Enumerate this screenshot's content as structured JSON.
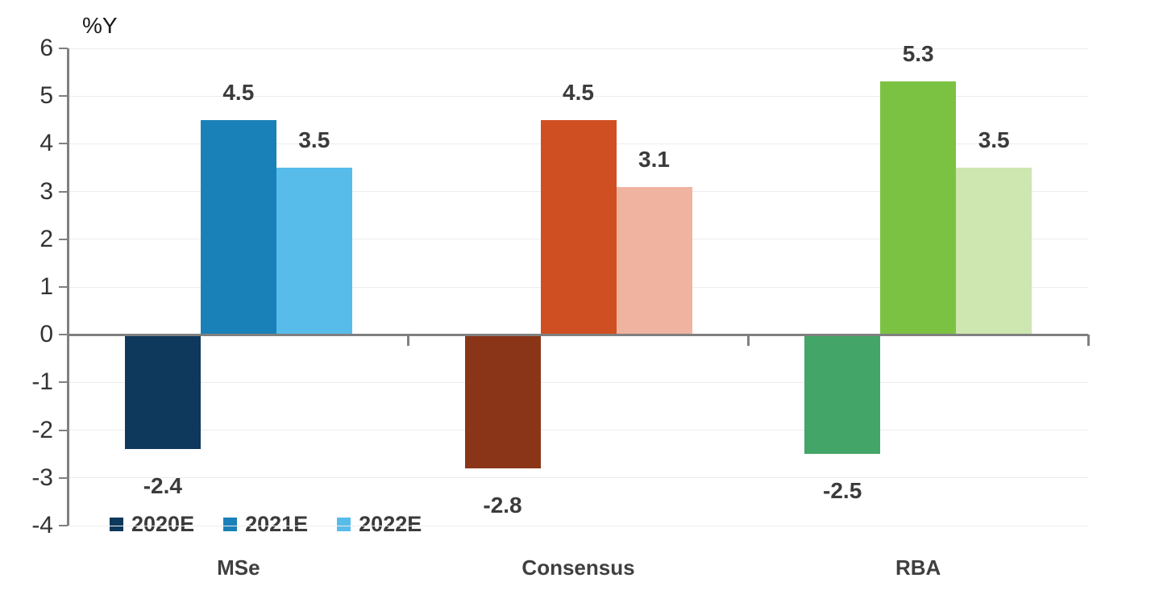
{
  "chart_data": {
    "type": "bar",
    "title": "",
    "ylabel": "%Y",
    "xlabel": "",
    "ylim": [
      -4,
      6
    ],
    "ytick_step": 1,
    "yticks": [
      6,
      5,
      4,
      3,
      2,
      1,
      0,
      -1,
      -2,
      -3,
      -4
    ],
    "grid": true,
    "legend_position": "bottom-left",
    "categories": [
      "MSe",
      "Consensus",
      "RBA"
    ],
    "series_names": [
      "2020E",
      "2021E",
      "2022E"
    ],
    "series": [
      {
        "name": "2020E",
        "values": [
          -2.4,
          -2.8,
          -2.5
        ],
        "colors_by_category": [
          "#0E385C",
          "#8B3518",
          "#43A567"
        ]
      },
      {
        "name": "2021E",
        "values": [
          4.5,
          4.5,
          5.3
        ],
        "colors_by_category": [
          "#1A80B8",
          "#D04F22",
          "#7CC242"
        ]
      },
      {
        "name": "2022E",
        "values": [
          3.5,
          3.1,
          3.5
        ],
        "colors_by_category": [
          "#58BCEB",
          "#F0B3A0",
          "#CEE6B0"
        ]
      }
    ],
    "data_labels": {
      "MSe": [
        "-2.4",
        "4.5",
        "3.5"
      ],
      "Consensus": [
        "-2.8",
        "4.5",
        "3.1"
      ],
      "RBA": [
        "-2.5",
        "5.3",
        "3.5"
      ]
    },
    "legend": [
      {
        "label": "2020E",
        "color": "#0E385C"
      },
      {
        "label": "2021E",
        "color": "#1A80B8"
      },
      {
        "label": "2022E",
        "color": "#58BCEB"
      }
    ],
    "colors": {
      "axis": "#808080",
      "gridline": "#ECECEC",
      "data_label": "#3b3b3b",
      "tick_label": "#333333"
    }
  }
}
